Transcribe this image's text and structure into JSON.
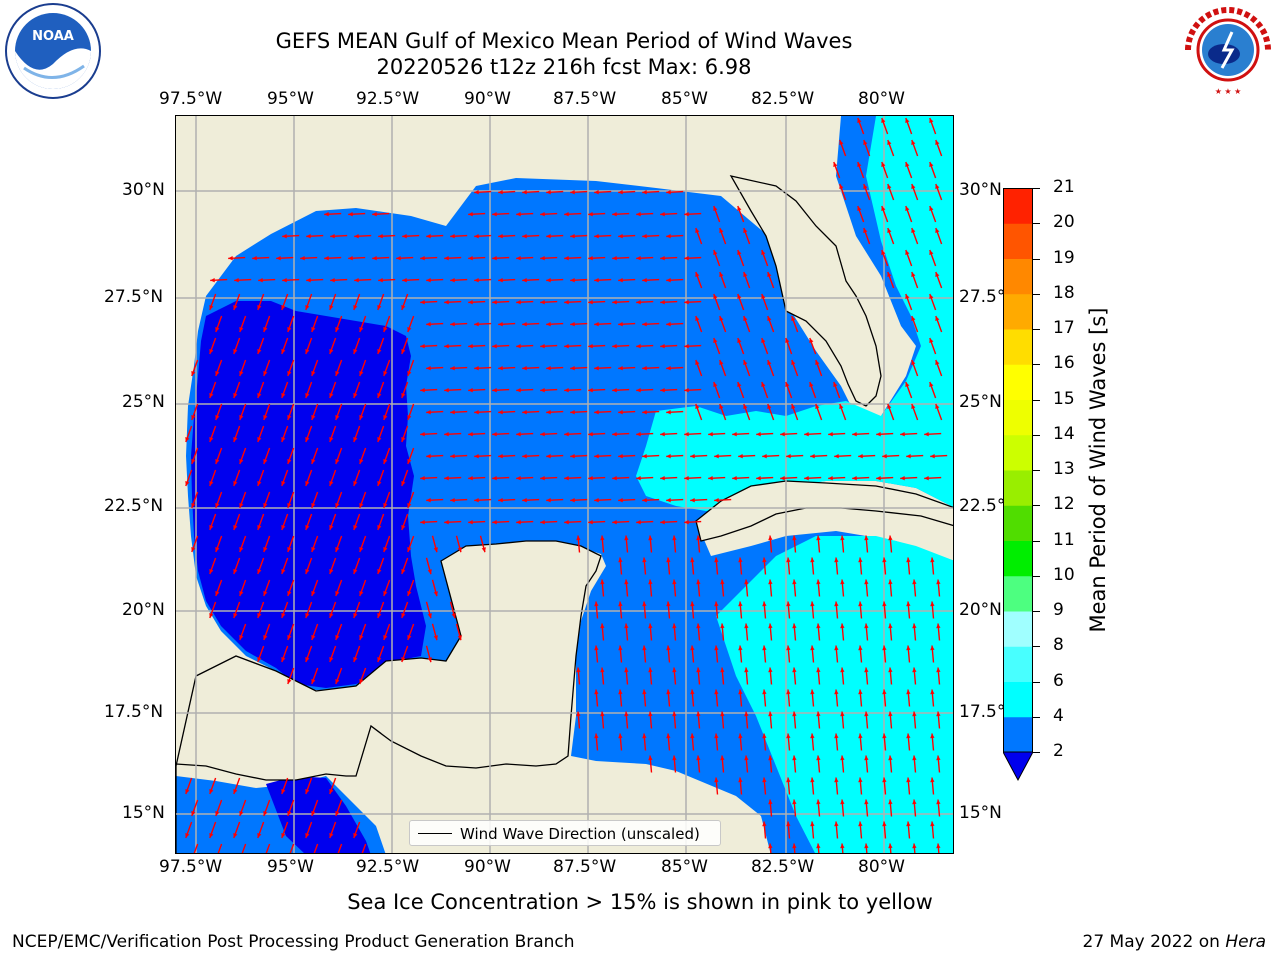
{
  "title": {
    "line1": "GEFS MEAN Gulf of Mexico Mean Period of Wind Waves",
    "line2": "20220526 t12z 216h fcst   Max: 6.98"
  },
  "longitude_labels": [
    "97.5°W",
    "95°W",
    "92.5°W",
    "90°W",
    "87.5°W",
    "85°W",
    "82.5°W",
    "80°W"
  ],
  "latitude_labels": [
    "30°N",
    "27.5°N",
    "25°N",
    "22.5°N",
    "20°N",
    "17.5°N",
    "15°N"
  ],
  "legend": {
    "label": "Wind Wave Direction (unscaled)"
  },
  "colorbar": {
    "label": "Mean Period of Wind Waves [s]",
    "ticks": [
      "2",
      "4",
      "6",
      "8",
      "9",
      "10",
      "11",
      "12",
      "13",
      "14",
      "15",
      "16",
      "17",
      "18",
      "19",
      "20",
      "21"
    ],
    "colors": [
      "#0000ee",
      "#0077ff",
      "#00ffff",
      "#48ffff",
      "#a0ffff",
      "#4dff80",
      "#00ee00",
      "#50dd00",
      "#99ee00",
      "#ccff00",
      "#eeff00",
      "#ffff00",
      "#ffdd00",
      "#ffaa00",
      "#ff8800",
      "#ff5500",
      "#ff2200",
      "#ff0000"
    ],
    "extend": "min"
  },
  "subtitle": "Sea Ice Concentration > 15% is shown in pink to yellow",
  "footer": {
    "left": "NCEP/EMC/Verification Post Processing Product Generation Branch",
    "date": "27 May 2022 on ",
    "host": "Hera"
  },
  "logos": {
    "left": "NOAA",
    "right": "NATIONAL WEATHER SERVICE"
  },
  "colors": {
    "land": "#efedd9",
    "arrow": "#ff0000",
    "grid": "#b0b0b0"
  }
}
